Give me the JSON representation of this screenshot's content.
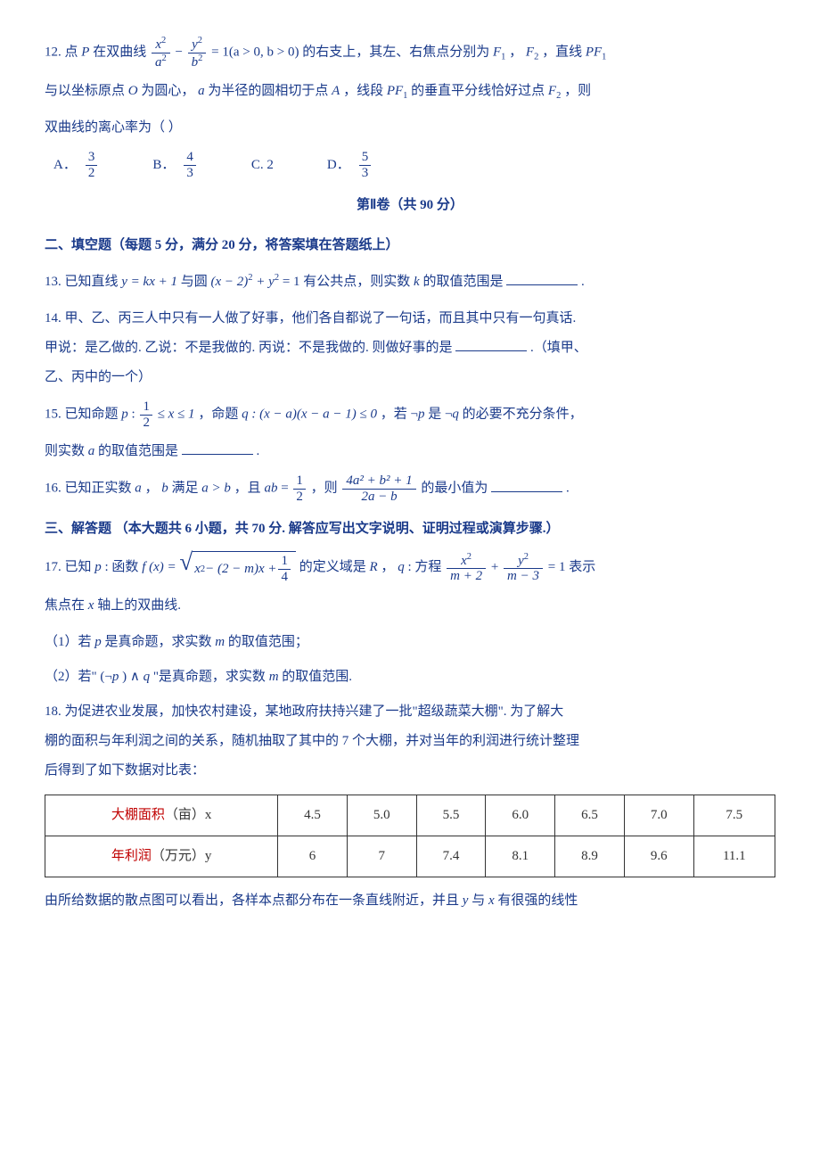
{
  "q12": {
    "stem_a": "12. 点",
    "P": "P",
    "stem_b": "在双曲线",
    "eq_lhs_num1": "x",
    "eq_lhs_den1": "a",
    "eq_lhs_num2": "y",
    "eq_lhs_den2": "b",
    "eq_rhs": "= 1(a > 0, b > 0)",
    "stem_c": "的右支上，其左、右焦点分别为",
    "F1": "F",
    "F1sub": "1",
    "comma": "，",
    "F2": "F",
    "F2sub": "2",
    "stem_d": "，直线",
    "PF1": "PF",
    "PF1sub": "1",
    "line2_a": "与以坐标原点",
    "O": "O",
    "line2_b": "为圆心，",
    "a": "a",
    "line2_c": "为半径的圆相切于点",
    "A": "A",
    "line2_d": "，线段",
    "line2_e": "的垂直平分线恰好过点",
    "line2_f": "，则",
    "line3": "双曲线的离心率为（    ）",
    "choices": {
      "A_label": "A．",
      "A_num": "3",
      "A_den": "2",
      "B_label": "B．",
      "B_num": "4",
      "B_den": "3",
      "C_label": "C. 2",
      "D_label": "D．",
      "D_num": "5",
      "D_den": "3"
    }
  },
  "part2_title": "第Ⅱ卷（共 90 分）",
  "section2_title": "二、填空题（每题 5 分，满分 20 分，将答案填在答题纸上）",
  "q13": {
    "a": "13. 已知直线",
    "eq1": "y = kx + 1",
    "b": "与圆",
    "eq2_a": "(x − 2)",
    "eq2_b": " + y",
    "eq2_c": " = 1",
    "c": "有公共点，则实数",
    "k": "k",
    "d": "的取值范围是",
    "end": "."
  },
  "q14": {
    "a": "14. 甲、乙、丙三人中只有一人做了好事，他们各自都说了一句话，而且其中只有一句真话.",
    "b": "甲说：是乙做的. 乙说：不是我做的. 丙说：不是我做的. 则做好事的是",
    "c": ".（填甲、",
    "d": "乙、丙中的一个）"
  },
  "q15": {
    "a": "15. 已知命题",
    "p": "p",
    "colon1": " : ",
    "num1": "1",
    "den1": "2",
    "mid1": " ≤ x ≤ 1",
    "comma": "，命题",
    "q": "q",
    "colon2": " : (x − a)(x − a − 1) ≤ 0",
    "b": "，若 ¬",
    "c": " 是 ¬",
    "d": " 的必要不充分条件，",
    "line2_a": "则实数",
    "avar": "a",
    "line2_b": "的取值范围是",
    "end": "."
  },
  "q16": {
    "a": "16. 已知正实数",
    "avar": "a",
    "comma1": "，",
    "bvar": "b",
    "b": "满足",
    "cond1": "a > b",
    "c": "，且",
    "ab": "ab",
    "eq": " = ",
    "num1": "1",
    "den1": "2",
    "d": "，则",
    "frac_num": "4a² + b² + 1",
    "frac_den": "2a − b",
    "e": "的最小值为",
    "end": "."
  },
  "section3_title": "三、解答题 （本大题共 6 小题，共 70 分. 解答应写出文字说明、证明过程或演算步骤.）",
  "q17": {
    "a": "17.  已知",
    "p": "p",
    "b": " : 函数",
    "fx": "f (x) = ",
    "sqrt_body_a": "x",
    "sqrt_body_b": " − (2 − m)x + ",
    "sqrt_num": "1",
    "sqrt_den": "4",
    "c": " 的定义域是",
    "R": "R",
    "d": "，",
    "q": "q",
    "e": " : 方程 ",
    "eq_num1": "x",
    "eq_den1": "m + 2",
    "plus": " + ",
    "eq_num2": "y",
    "eq_den2": "m − 3",
    "rhs": " = 1",
    "f": "表示",
    "line2": "焦点在",
    "x": "x",
    "line2b": "轴上的双曲线.",
    "sub1_a": "（1）若",
    "sub1_b": "是真命题，求实数",
    "m": "m",
    "sub1_c": "的取值范围；",
    "sub2_a": "（2）若\" (¬",
    "sub2_b": ") ∧ ",
    "sub2_c": " \"是真命题，求实数",
    "sub2_d": "的取值范围."
  },
  "q18": {
    "a": "18.  为促进农业发展，加快农村建设，某地政府扶持兴建了一批\"超级蔬菜大棚\". 为了解大",
    "b": "棚的面积与年利润之间的关系，随机抽取了其中的 7 个大棚，并对当年的利润进行统计整理",
    "c": "后得到了如下数据对比表：",
    "table": {
      "row1_label_red": "大棚面积",
      "row1_label_rest": "（亩）x",
      "row2_label_red": "年利润",
      "row2_label_rest": "（万元）y",
      "x": [
        "4.5",
        "5.0",
        "5.5",
        "6.0",
        "6.5",
        "7.0",
        "7.5"
      ],
      "y": [
        "6",
        "7",
        "7.4",
        "8.1",
        "8.9",
        "9.6",
        "11.1"
      ]
    },
    "d": "由所给数据的散点图可以看出，各样本点都分布在一条直线附近，并且",
    "yvar": "y",
    "e": "与",
    "xvar": "x",
    "f": "有很强的线性"
  }
}
